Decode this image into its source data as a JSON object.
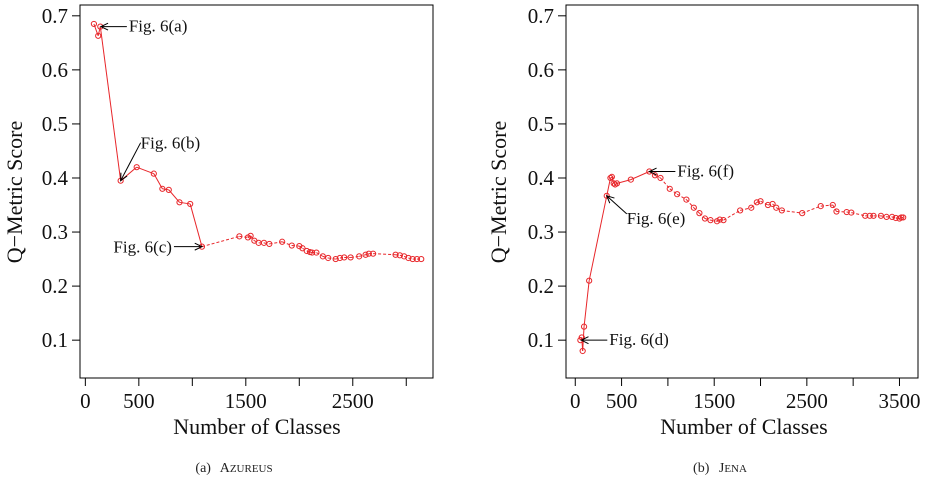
{
  "chart_data": [
    {
      "type": "scatter",
      "panel": "a",
      "caption_prefix": "(a)",
      "caption_name": "Azureus",
      "xlabel": "Number of Classes",
      "ylabel": "Q−Metric Score",
      "xlim": [
        -50,
        3250
      ],
      "ylim": [
        0.03,
        0.72
      ],
      "xticks": [
        0,
        500,
        1500,
        2500
      ],
      "xticks_minor": [
        1000,
        2000,
        3000
      ],
      "yticks": [
        0.1,
        0.2,
        0.3,
        0.4,
        0.5,
        0.6,
        0.7
      ],
      "grid": false,
      "series_color": "#e8262a",
      "points": [
        [
          80,
          0.685
        ],
        [
          120,
          0.663
        ],
        [
          140,
          0.68
        ],
        [
          330,
          0.395
        ],
        [
          480,
          0.42
        ],
        [
          640,
          0.408
        ],
        [
          720,
          0.38
        ],
        [
          780,
          0.378
        ],
        [
          880,
          0.355
        ],
        [
          980,
          0.352
        ],
        [
          1090,
          0.273
        ],
        [
          1440,
          0.292
        ],
        [
          1520,
          0.29
        ],
        [
          1545,
          0.293
        ],
        [
          1580,
          0.284
        ],
        [
          1620,
          0.28
        ],
        [
          1670,
          0.28
        ],
        [
          1720,
          0.278
        ],
        [
          1840,
          0.282
        ],
        [
          1930,
          0.275
        ],
        [
          2000,
          0.274
        ],
        [
          2030,
          0.27
        ],
        [
          2070,
          0.265
        ],
        [
          2100,
          0.263
        ],
        [
          2120,
          0.262
        ],
        [
          2160,
          0.262
        ],
        [
          2220,
          0.255
        ],
        [
          2270,
          0.252
        ],
        [
          2340,
          0.25
        ],
        [
          2380,
          0.252
        ],
        [
          2420,
          0.253
        ],
        [
          2480,
          0.253
        ],
        [
          2560,
          0.255
        ],
        [
          2620,
          0.258
        ],
        [
          2650,
          0.26
        ],
        [
          2690,
          0.26
        ],
        [
          2900,
          0.258
        ],
        [
          2940,
          0.257
        ],
        [
          2980,
          0.255
        ],
        [
          3020,
          0.252
        ],
        [
          3060,
          0.25
        ],
        [
          3100,
          0.25
        ],
        [
          3140,
          0.25
        ]
      ],
      "annotations": [
        {
          "label": "Fig. 6(a)",
          "x": 145,
          "y": 0.68,
          "side": "right"
        },
        {
          "label": "Fig. 6(b)",
          "x": 330,
          "y": 0.395,
          "side": "up"
        },
        {
          "label": "Fig. 6(c)",
          "x": 1090,
          "y": 0.273,
          "side": "left"
        }
      ]
    },
    {
      "type": "scatter",
      "panel": "b",
      "caption_prefix": "(b)",
      "caption_name": "Jena",
      "xlabel": "Number of Classes",
      "ylabel": "Q−Metric Score",
      "xlim": [
        -100,
        3700
      ],
      "ylim": [
        0.03,
        0.72
      ],
      "xticks": [
        0,
        500,
        1500,
        2500,
        3500
      ],
      "xticks_minor": [
        1000,
        2000,
        3000
      ],
      "yticks": [
        0.1,
        0.2,
        0.3,
        0.4,
        0.5,
        0.6,
        0.7
      ],
      "grid": false,
      "series_color": "#e8262a",
      "points": [
        [
          55,
          0.1
        ],
        [
          70,
          0.105
        ],
        [
          80,
          0.08
        ],
        [
          95,
          0.125
        ],
        [
          150,
          0.21
        ],
        [
          340,
          0.367
        ],
        [
          380,
          0.4
        ],
        [
          395,
          0.402
        ],
        [
          415,
          0.39
        ],
        [
          430,
          0.388
        ],
        [
          450,
          0.39
        ],
        [
          600,
          0.397
        ],
        [
          800,
          0.412
        ],
        [
          860,
          0.405
        ],
        [
          920,
          0.4
        ],
        [
          1020,
          0.38
        ],
        [
          1100,
          0.37
        ],
        [
          1200,
          0.36
        ],
        [
          1280,
          0.345
        ],
        [
          1340,
          0.335
        ],
        [
          1400,
          0.325
        ],
        [
          1460,
          0.322
        ],
        [
          1530,
          0.32
        ],
        [
          1560,
          0.323
        ],
        [
          1600,
          0.322
        ],
        [
          1780,
          0.34
        ],
        [
          1900,
          0.345
        ],
        [
          1960,
          0.355
        ],
        [
          2000,
          0.357
        ],
        [
          2080,
          0.35
        ],
        [
          2130,
          0.352
        ],
        [
          2170,
          0.345
        ],
        [
          2230,
          0.34
        ],
        [
          2450,
          0.335
        ],
        [
          2650,
          0.348
        ],
        [
          2780,
          0.35
        ],
        [
          2820,
          0.338
        ],
        [
          2930,
          0.337
        ],
        [
          2980,
          0.336
        ],
        [
          3130,
          0.33
        ],
        [
          3180,
          0.33
        ],
        [
          3220,
          0.33
        ],
        [
          3300,
          0.33
        ],
        [
          3360,
          0.328
        ],
        [
          3420,
          0.328
        ],
        [
          3460,
          0.326
        ],
        [
          3500,
          0.325
        ],
        [
          3520,
          0.327
        ],
        [
          3540,
          0.327
        ]
      ],
      "annotations": [
        {
          "label": "Fig. 6(d)",
          "x": 65,
          "y": 0.1,
          "side": "right"
        },
        {
          "label": "Fig. 6(e)",
          "x": 340,
          "y": 0.367,
          "side": "down-right"
        },
        {
          "label": "Fig. 6(f)",
          "x": 800,
          "y": 0.412,
          "side": "right"
        }
      ]
    }
  ]
}
